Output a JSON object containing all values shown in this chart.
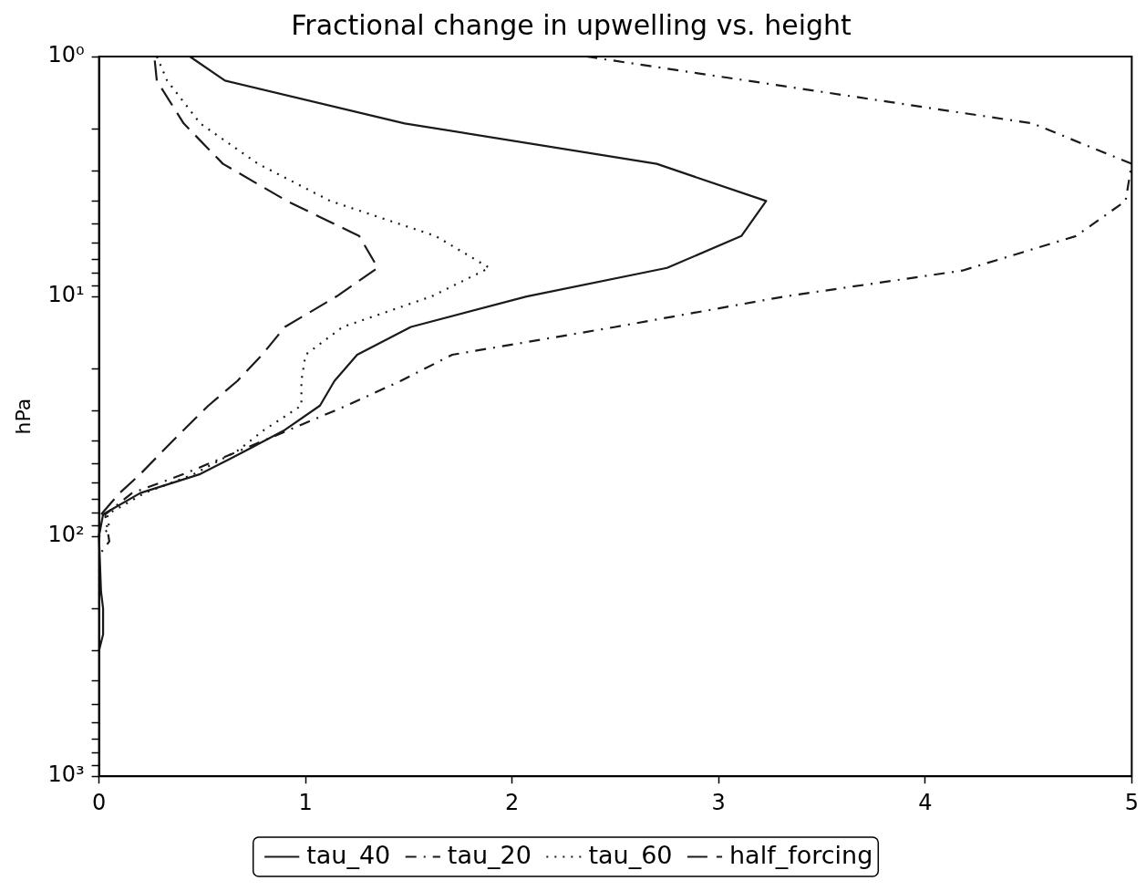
{
  "chart_data": {
    "type": "line",
    "title": "Fractional change in upwelling vs. height",
    "ylabel": "hPa",
    "xlim": [
      0,
      5
    ],
    "xticks": [
      0,
      1,
      2,
      3,
      4,
      5
    ],
    "ylim": [
      1000,
      1
    ],
    "log": "y",
    "yticks": [
      {
        "value": 1,
        "label": "10⁰"
      },
      {
        "value": 2,
        "label": null
      },
      {
        "value": 3,
        "label": null
      },
      {
        "value": 4,
        "label": null
      },
      {
        "value": 5,
        "label": null
      },
      {
        "value": 6,
        "label": null
      },
      {
        "value": 7,
        "label": null
      },
      {
        "value": 8,
        "label": null
      },
      {
        "value": 9,
        "label": null
      },
      {
        "value": 10,
        "label": "10¹"
      },
      {
        "value": 20,
        "label": null
      },
      {
        "value": 30,
        "label": null
      },
      {
        "value": 40,
        "label": null
      },
      {
        "value": 50,
        "label": null
      },
      {
        "value": 60,
        "label": null
      },
      {
        "value": 70,
        "label": null
      },
      {
        "value": 80,
        "label": null
      },
      {
        "value": 90,
        "label": null
      },
      {
        "value": 100,
        "label": "10²"
      },
      {
        "value": 200,
        "label": null
      },
      {
        "value": 300,
        "label": null
      },
      {
        "value": 400,
        "label": null
      },
      {
        "value": 500,
        "label": null
      },
      {
        "value": 600,
        "label": null
      },
      {
        "value": 700,
        "label": null
      },
      {
        "value": 800,
        "label": null
      },
      {
        "value": 900,
        "label": null
      },
      {
        "value": 1000,
        "label": "10³"
      }
    ],
    "grid": false,
    "legend": "bottom",
    "marker": "none",
    "series": [
      {
        "name": "tau_40",
        "color": "#1a1a1a",
        "line_style": "solid",
        "x": [
          0.44,
          0.61,
          1.48,
          2.7,
          3.23,
          3.11,
          2.75,
          2.07,
          1.51,
          1.25,
          1.14,
          1.07,
          0.9,
          0.71,
          0.49,
          0.2,
          0.02,
          0,
          0.01,
          0.02,
          0.02,
          0
        ],
        "values": [
          1,
          1.26,
          1.9,
          2.8,
          4,
          5.6,
          7.6,
          10,
          13.4,
          17.5,
          22.5,
          28.5,
          36,
          44,
          55,
          66,
          81,
          100,
          170,
          200,
          256,
          300
        ]
      },
      {
        "name": "tau_20",
        "color": "#1a1a1a",
        "line_style": "dashdot",
        "x": [
          2.36,
          4.52,
          5.0,
          4.97,
          4.73,
          4.18,
          3.32,
          2.5,
          1.71,
          1.46,
          1.2,
          0.92,
          0.68,
          0.41,
          0.16,
          0.03,
          0.05,
          0
        ],
        "values": [
          1,
          1.9,
          2.8,
          4,
          5.6,
          7.8,
          10,
          13.4,
          17.5,
          22.5,
          28.5,
          36,
          44,
          55,
          66,
          81,
          105,
          120
        ]
      },
      {
        "name": "tau_60",
        "color": "#1a1a1a",
        "line_style": "dotted",
        "x": [
          0.28,
          0.33,
          0.49,
          0.77,
          1.12,
          1.63,
          1.89,
          1.61,
          1.18,
          1.0,
          0.98,
          0.98,
          0.8,
          0.67,
          0.46,
          0.22,
          0.04,
          0.05,
          0
        ],
        "values": [
          1,
          1.26,
          1.9,
          2.8,
          4,
          5.6,
          7.6,
          10,
          13.4,
          17.5,
          22.5,
          28.5,
          36,
          44,
          55,
          66,
          81,
          93,
          100
        ]
      },
      {
        "name": "half_forcing",
        "color": "#1a1a1a",
        "line_style": "dashed",
        "x": [
          0.27,
          0.28,
          0.41,
          0.6,
          0.91,
          1.26,
          1.35,
          1.15,
          0.9,
          0.79,
          0.67,
          0.53,
          0.41,
          0.31,
          0.2,
          0.1,
          0.01,
          0
        ],
        "values": [
          1.04,
          1.26,
          1.9,
          2.8,
          4,
          5.6,
          7.6,
          10,
          13.4,
          17.5,
          22.5,
          28.5,
          36,
          44,
          55,
          66,
          81,
          100
        ]
      }
    ]
  }
}
